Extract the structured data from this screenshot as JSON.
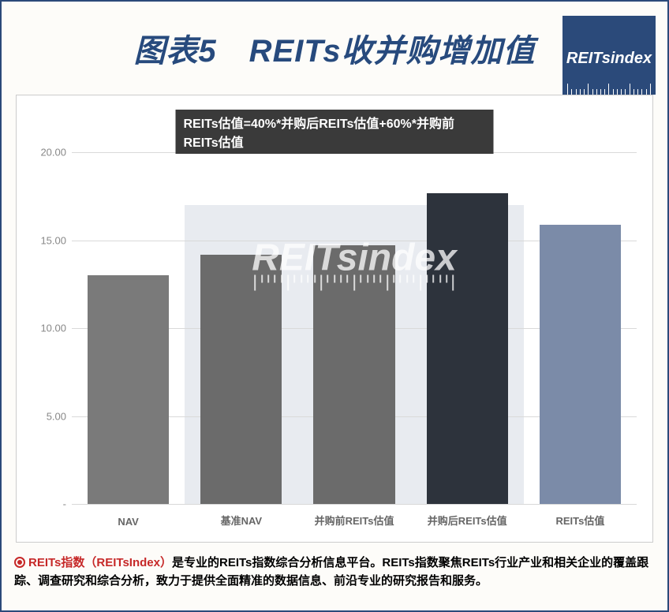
{
  "title": "图表5　REITs收并购增加值",
  "logo_text": "REITsindex",
  "formula": "REITs估值=40%*并购后REITs估值+60%*并购前REITs估值",
  "watermark": "REITsindex",
  "chart": {
    "type": "bar",
    "ylim": [
      0,
      21
    ],
    "yticks": [
      0,
      5,
      10,
      15,
      20
    ],
    "ytick_labels": [
      "-",
      "5.00",
      "10.00",
      "15.00",
      "20.00"
    ],
    "grid_color": "#d9d9d9",
    "background": "#ffffff",
    "highlight_band": {
      "start_idx": 1,
      "end_idx": 4,
      "color": "#e8ebf0"
    },
    "categories": [
      "NAV",
      "基准NAV",
      "并购前REITs估值",
      "并购后REITs估值",
      "REITs估值"
    ],
    "values": [
      13.0,
      14.2,
      14.7,
      17.7,
      15.9
    ],
    "bar_colors": [
      "#7a7a7a",
      "#6b6b6b",
      "#6b6b6b",
      "#2d333c",
      "#7b8ba8"
    ],
    "bar_width": 0.72,
    "label_fontsize": 13,
    "label_color": "#666666"
  },
  "footer": {
    "bullet_color": "#c62828",
    "brand": "REITs指数",
    "brand_en": "（REITsIndex）",
    "text_rest": "是专业的REITs指数综合分析信息平台。REITs指数聚焦REITs行业产业和相关企业的覆盖跟踪、调查研究和综合分析，致力于提供全面精准的数据信息、前沿专业的研究报告和服务。"
  }
}
